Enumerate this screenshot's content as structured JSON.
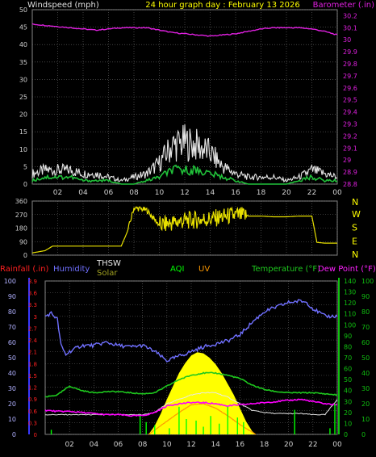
{
  "header": {
    "left": "Windspeed (mph)",
    "center": "24 hour graph day : February 13 2026",
    "right": "Barometer (.in)"
  },
  "colors": {
    "background": "#000000",
    "grid": "#6b6b6b",
    "wind": "#e6e6e6",
    "wind_avg": "#21c13a",
    "barometer": "#e020e0",
    "direction": "#e8e000",
    "humidity": "#7070ff",
    "thsw": "#e8e8e8",
    "solar": "#ffff00",
    "aqi": "#00ff00",
    "uv": "#ff9900",
    "temperature": "#1ec81e",
    "dew_point": "#ff00ff",
    "rainfall": "#ff2020",
    "left_axis_lower": "#3838ff",
    "right_axis_lower": "#10c010"
  },
  "x_ticks": [
    "02",
    "04",
    "06",
    "08",
    "10",
    "12",
    "14",
    "16",
    "18",
    "20",
    "22",
    "00"
  ],
  "compass": [
    "N",
    "W",
    "S",
    "E",
    "N"
  ],
  "legend_lower": {
    "rainfall": "Rainfall (.in)",
    "humidity": "Humidity",
    "thsw": "THSW",
    "solar": "Solar",
    "aqi": "AQI",
    "uv": "UV",
    "temperature": "Temperature (°F)",
    "dew_point": "Dew Point (°F)"
  },
  "chart_data": [
    {
      "type": "line",
      "title": "24 hour graph day : February 13 2026",
      "x_unit": "hour",
      "x_range": [
        0,
        24
      ],
      "y_left": {
        "label": "Windspeed (mph)",
        "ticks": [
          0,
          5,
          10,
          15,
          20,
          25,
          30,
          35,
          40,
          45,
          50
        ],
        "ylim": [
          0,
          50
        ]
      },
      "y_right": {
        "label": "Barometer (.in)",
        "ticks": [
          "28.8",
          "28.9",
          "29",
          "29.1",
          "29.2",
          "29.3",
          "29.4",
          "29.5",
          "29.6",
          "29.7",
          "29.8",
          "29.9",
          "30",
          "30.1",
          "30.2"
        ],
        "ylim": [
          28.8,
          30.25
        ]
      },
      "series": [
        {
          "name": "Barometer (.in)",
          "axis": "right",
          "x": [
            0,
            1,
            2,
            3,
            4,
            5,
            6,
            7,
            8,
            9,
            10,
            11,
            12,
            13,
            14,
            15,
            16,
            17,
            18,
            19,
            20,
            21,
            22,
            23,
            24
          ],
          "values": [
            30.13,
            30.12,
            30.11,
            30.1,
            30.09,
            30.08,
            30.09,
            30.1,
            30.1,
            30.1,
            30.08,
            30.06,
            30.05,
            30.04,
            30.03,
            30.04,
            30.05,
            30.07,
            30.09,
            30.1,
            30.1,
            30.1,
            30.09,
            30.07,
            30.04
          ]
        },
        {
          "role": "gust",
          "axis": "left",
          "x": [
            0,
            1,
            2,
            3,
            4,
            5,
            6,
            7,
            8,
            9,
            10,
            11,
            12,
            13,
            14,
            15,
            16,
            17,
            18,
            19,
            20,
            21,
            22,
            23,
            24
          ],
          "values": [
            3,
            4,
            4,
            4,
            3,
            3,
            2,
            1,
            2,
            3,
            6,
            11,
            12,
            11,
            9,
            5,
            3,
            2,
            2,
            2,
            1,
            2,
            4,
            3,
            2
          ]
        },
        {
          "role": "average",
          "axis": "left",
          "x": [
            0,
            1,
            2,
            3,
            4,
            5,
            6,
            7,
            8,
            9,
            10,
            11,
            12,
            13,
            14,
            15,
            16,
            17,
            18,
            19,
            20,
            21,
            22,
            23,
            24
          ],
          "values": [
            1,
            2,
            2,
            2,
            1,
            1,
            1,
            0,
            0,
            1,
            2,
            4,
            4,
            4,
            3,
            2,
            1,
            0,
            0,
            0,
            0,
            1,
            2,
            1,
            1
          ]
        }
      ]
    },
    {
      "type": "line",
      "x_unit": "hour",
      "x_range": [
        0,
        24
      ],
      "y_left": {
        "ticks": [
          0,
          90,
          180,
          270,
          360
        ],
        "ylim": [
          0,
          360
        ]
      },
      "y_right": {
        "labels": [
          "N",
          "W",
          "S",
          "E",
          "N"
        ]
      },
      "series": [
        {
          "role": "wind direction",
          "x": [
            0,
            1,
            1.6,
            2,
            5,
            6.8,
            7,
            7.5,
            8,
            9,
            10,
            11,
            12,
            13,
            14,
            15,
            16,
            17,
            18,
            19,
            20,
            21,
            22,
            22.4,
            23,
            24
          ],
          "values": [
            15,
            30,
            60,
            60,
            60,
            60,
            60,
            160,
            315,
            300,
            200,
            215,
            230,
            235,
            240,
            255,
            265,
            260,
            260,
            255,
            255,
            260,
            260,
            85,
            80,
            80
          ]
        }
      ]
    },
    {
      "type": "line",
      "x_unit": "hour",
      "x_range": [
        0,
        24
      ],
      "y_left_outer": {
        "label": "Rainfall (.in)",
        "ticks": [
          "0",
          "0.3",
          "0.6",
          "0.9",
          "1.2",
          "1.5",
          "1.8",
          "2.1",
          "2.4",
          "2.7",
          "3",
          "3.3",
          "3.6",
          "3.9"
        ],
        "ylim": [
          0,
          3.9
        ]
      },
      "y_left_inner": {
        "label": "Humidity",
        "ticks": [
          0,
          10,
          20,
          30,
          40,
          50,
          60,
          70,
          80,
          90,
          100
        ],
        "ylim": [
          0,
          100
        ]
      },
      "y_right_inner": {
        "ticks": [
          0,
          10,
          20,
          30,
          40,
          50,
          60,
          70,
          80,
          90,
          100,
          110,
          120,
          130,
          140
        ],
        "ylim": [
          0,
          140
        ]
      },
      "y_right_outer": {
        "ticks": [
          0,
          10,
          20,
          30,
          40,
          50,
          60,
          70,
          80,
          90,
          100
        ],
        "ylim": [
          0,
          100
        ]
      },
      "series": [
        {
          "name": "Humidity",
          "axis": "humidity",
          "x": [
            0,
            0.5,
            1,
            1.3,
            1.7,
            2,
            3,
            4,
            5,
            6,
            7,
            8,
            9,
            10,
            11,
            12,
            13,
            14,
            15,
            16,
            17,
            18,
            19,
            20,
            21,
            21.5,
            22,
            23,
            24
          ],
          "values": [
            77,
            79,
            75,
            58,
            52,
            54,
            58,
            58,
            60,
            58,
            57,
            58,
            54,
            48,
            51,
            54,
            57,
            59,
            61,
            65,
            73,
            80,
            83,
            86,
            87,
            86,
            82,
            77,
            77
          ]
        },
        {
          "name": "Temperature (°F)",
          "axis": "right_inner",
          "x": [
            0,
            1,
            2,
            3,
            4,
            5,
            6,
            7,
            8,
            9,
            10,
            11,
            12,
            13,
            14,
            15,
            16,
            17,
            18,
            19,
            20,
            21,
            22,
            23,
            24
          ],
          "values": [
            34,
            36,
            44,
            40,
            38,
            39,
            39,
            38,
            37,
            38,
            44,
            50,
            54,
            56,
            56,
            54,
            51,
            45,
            41,
            39,
            38,
            38,
            38,
            37,
            36
          ]
        },
        {
          "name": "Dew Point (°F)",
          "axis": "right_inner",
          "x": [
            0,
            1,
            2,
            3,
            4,
            5,
            6,
            7,
            8,
            9,
            10,
            11,
            12,
            13,
            14,
            15,
            16,
            17,
            18,
            19,
            20,
            21,
            22,
            23,
            24
          ],
          "values": [
            22,
            21,
            21,
            20,
            19,
            18,
            18,
            17,
            17,
            20,
            26,
            28,
            29,
            29,
            28,
            26,
            27,
            28,
            29,
            30,
            31,
            32,
            30,
            28,
            27
          ]
        },
        {
          "name": "Solar",
          "axis": "right_inner",
          "type": "area",
          "x": [
            8.5,
            9,
            9.5,
            10,
            10.5,
            11,
            11.5,
            12,
            12.5,
            13,
            13.5,
            14,
            14.5,
            15,
            15.5,
            16,
            16.5,
            17,
            17.3
          ],
          "values": [
            0,
            8,
            19,
            32,
            44,
            56,
            65,
            72,
            75,
            74,
            70,
            64,
            56,
            46,
            36,
            24,
            12,
            3,
            0
          ]
        },
        {
          "name": "UV",
          "axis": "right_inner",
          "x": [
            8.5,
            9,
            10,
            11,
            12,
            13,
            14,
            15,
            16,
            17,
            17.3
          ],
          "values": [
            0,
            4,
            12,
            20,
            27,
            28,
            24,
            17,
            9,
            2,
            0
          ]
        },
        {
          "name": "THSW",
          "axis": "right_inner",
          "x": [
            0,
            1,
            2,
            3,
            4,
            5,
            6,
            7,
            8,
            9,
            10,
            11,
            12,
            13,
            14,
            15,
            16,
            17,
            18,
            19,
            20,
            21,
            22,
            23,
            24
          ],
          "values": [
            18,
            18,
            18,
            18,
            18,
            18,
            18,
            18,
            18,
            20,
            28,
            32,
            36,
            38,
            38,
            34,
            28,
            22,
            20,
            19,
            19,
            19,
            18,
            18,
            32
          ]
        },
        {
          "name": "AQI",
          "axis": "right_outer",
          "type": "spikes",
          "x": [
            0.5,
            7.8,
            8.3,
            9,
            10.2,
            11,
            11.6,
            12.4,
            13,
            13.6,
            14.3,
            15,
            15.8,
            16.3,
            20.5,
            23.4,
            23.8
          ],
          "values": [
            3,
            12,
            8,
            6,
            4,
            18,
            10,
            9,
            5,
            12,
            7,
            18,
            11,
            8,
            16,
            4,
            20
          ]
        }
      ]
    }
  ]
}
